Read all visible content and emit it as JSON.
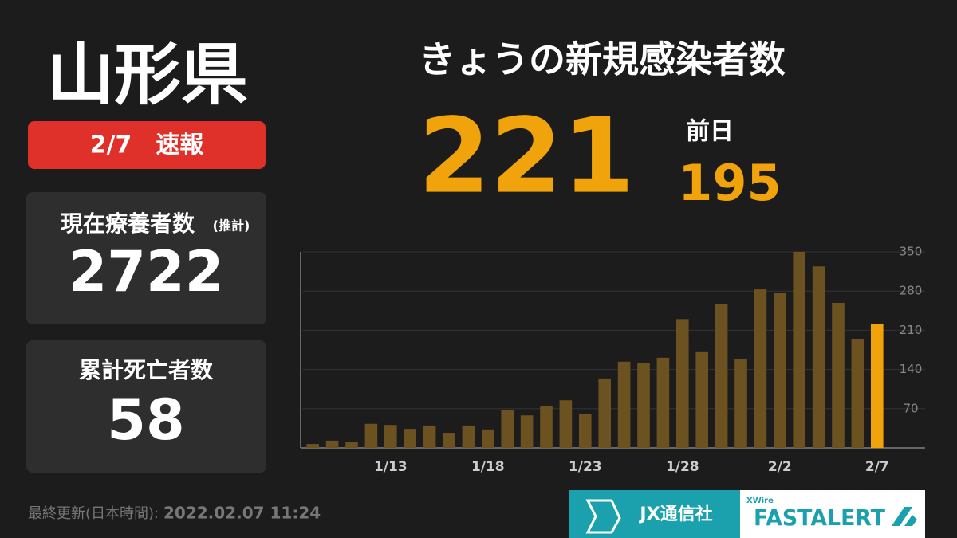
{
  "prefecture": "山形県",
  "badge": "2/7　速報",
  "panels": [
    {
      "label": "現在療養者数",
      "note": "(推計)",
      "value": "2722"
    },
    {
      "label": "累計死亡者数",
      "value": "58"
    }
  ],
  "headline": {
    "title": "きょうの新規感染者数",
    "value": "221",
    "prev_label": "前日",
    "prev_value": "195"
  },
  "footer": {
    "label": "最終更新(日本時間):",
    "timestamp": "2022.02.07 11:24"
  },
  "logos": {
    "jx": "JX通信社",
    "xwire": "XWire",
    "fastalert": "FASTALERT"
  },
  "chart_data": {
    "type": "bar",
    "categories": [
      null,
      null,
      null,
      null,
      "1/13",
      null,
      null,
      null,
      null,
      "1/18",
      null,
      null,
      null,
      null,
      "1/23",
      null,
      null,
      null,
      null,
      "1/28",
      null,
      null,
      null,
      null,
      "2/2",
      null,
      null,
      null,
      null,
      "2/7"
    ],
    "values": [
      7,
      13,
      11,
      43,
      41,
      34,
      40,
      27,
      40,
      33,
      67,
      58,
      74,
      85,
      61,
      124,
      154,
      151,
      161,
      230,
      171,
      257,
      158,
      283,
      276,
      350,
      324,
      259,
      195,
      221
    ],
    "color": "#6b5220",
    "highlight_color": "#f0a30a",
    "ylim": [
      0,
      350
    ],
    "yticks": [
      70,
      140,
      210,
      280,
      350
    ],
    "grid": true
  }
}
